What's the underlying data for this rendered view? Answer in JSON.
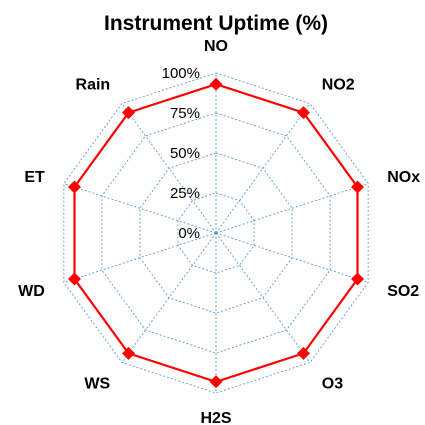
{
  "chart_data": {
    "type": "radar",
    "title": "Instrument Uptime (%)",
    "categories": [
      "NO",
      "NO2",
      "NOx",
      "SO2",
      "O3",
      "H2S",
      "WS",
      "WD",
      "ET",
      "Rain"
    ],
    "series": [
      {
        "values": [
          93,
          93,
          93,
          93,
          93,
          93,
          93,
          93,
          93,
          93
        ],
        "color": "#ff0000",
        "marker": "diamond"
      }
    ],
    "r_ticks": [
      "0%",
      "25%",
      "50%",
      "75%",
      "100%"
    ],
    "r_range": [
      0,
      100
    ],
    "grid": true,
    "grid_color": "#5b9bd5",
    "legend": false
  }
}
